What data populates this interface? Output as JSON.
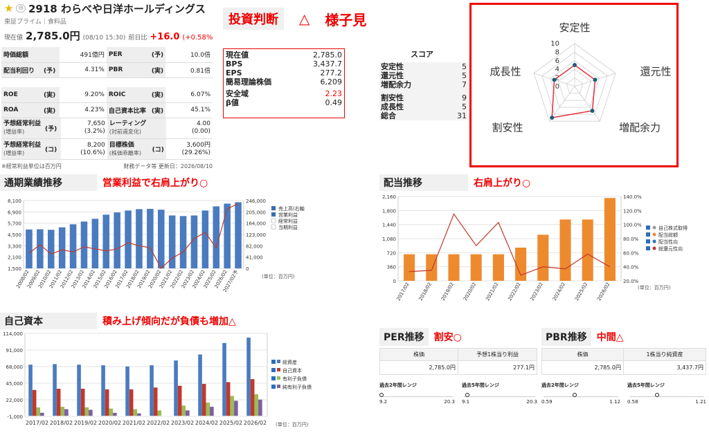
{
  "header": {
    "code_name": "2918 わらべや日洋ホールディングス",
    "market": "東証プライム",
    "sector": "食料品",
    "price_label": "現在値",
    "price": "2,785.0円",
    "time": "(08/10 15:30)",
    "prev_label": "前日比",
    "change": "+16.0",
    "change_pct": "(+0.58%"
  },
  "fin_rows": [
    {
      "l1": "時価総額",
      "l2": "",
      "v1": "491億円",
      "l3": "PER",
      "l4": "(予)",
      "v2": "10.0倍"
    },
    {
      "l1": "配当利回り",
      "l2": "(予)",
      "v1": "4.31%",
      "l3": "PBR",
      "l4": "(実)",
      "v2": "0.81倍"
    },
    {
      "l1": "",
      "l2": "",
      "v1": "",
      "l3": "",
      "l4": "",
      "v2": ""
    },
    {
      "l1": "ROE",
      "l2": "(実)",
      "v1": "9.20%",
      "l3": "ROIC",
      "l4": "(実)",
      "v2": "6.07%"
    },
    {
      "l1": "ROA",
      "l2": "(実)",
      "v1": "4.23%",
      "l3": "自己資本比率",
      "l4": "(実)",
      "v2": "45.1%"
    }
  ],
  "fin_rows2": [
    {
      "l1": "予想経常利益",
      "s1": "(増益率)",
      "l2": "(予)",
      "v1": "7,650",
      "v1b": "(3.2%)",
      "l3": "レーティング",
      "s3": "(対前週変化)",
      "v2": "4.00",
      "v2b": "(0.00)"
    },
    {
      "l1": "予想経常利益",
      "s1": "(増益率)",
      "l2": "(コ)",
      "v1": "8,200",
      "v1b": "(10.6%)",
      "l3": "目標株価",
      "s3": "(株価乖離率)",
      "l4": "(コ)",
      "v2": "3,600円",
      "v2b": "(29.26%)"
    }
  ],
  "footnote": "※経常利益単位は百万円",
  "data_source": "財務データ等 更新日：2026/08/10",
  "judgement": {
    "label": "投資判断",
    "mark": "△",
    "verdict": "様子見"
  },
  "valuation": [
    {
      "k": "現在値",
      "v": "2,785.0"
    },
    {
      "k": "BPS",
      "v": "3,437.7"
    },
    {
      "k": "EPS",
      "v": "277.2"
    },
    {
      "k": "簡易理論株価",
      "v": "6,209"
    },
    {
      "k": "安全域",
      "v": "2.23"
    },
    {
      "k": "β値",
      "v": "0.49"
    }
  ],
  "score": {
    "title": "スコア",
    "rows": [
      {
        "k": "安定性",
        "v": "5"
      },
      {
        "k": "還元性",
        "v": "5"
      },
      {
        "k": "増配余力",
        "v": "7"
      },
      {
        "k": "割安性",
        "v": "9"
      },
      {
        "k": "成長性",
        "v": "5"
      },
      {
        "k": "総合",
        "v": "31"
      }
    ]
  },
  "radar": {
    "labels": [
      "安定性",
      "還元性",
      "増配余力",
      "割安性",
      "成長性"
    ],
    "values": [
      5,
      5,
      7,
      9,
      5
    ],
    "max": 10,
    "ticks": [
      "10",
      "8",
      "6",
      "4",
      "2",
      "0"
    ]
  },
  "sec1": {
    "title": "通期業績推移",
    "note": "営業利益で右肩上がり○",
    "unit": "(単位：百万円)",
    "legend": [
      "売上高(右軸)",
      "営業利益",
      "経常利益",
      "当期利益"
    ]
  },
  "sec2": {
    "title": "配当推移",
    "note": "右肩上がり○",
    "unit": "(単位：百万円)",
    "legend": [
      "自己株式取得",
      "配当総額",
      "配当性向",
      "総還元性向"
    ]
  },
  "sec3": {
    "title": "自己資本",
    "note": "積み上げ傾向だが負債も増加△",
    "unit": "(単位：百万円)",
    "legend": [
      "総資産",
      "自己資本",
      "有利子負債",
      "純有利子負債"
    ]
  },
  "per": {
    "title": "PER推移",
    "note": "割安○",
    "h1": "株価",
    "h2": "予想1株当り利益",
    "v1": "2,785.0円",
    "v2": "277.1円",
    "r2": "過去2年間レンジ",
    "r5": "過去5年間レンジ",
    "r2min": "9.2",
    "r2max": "20.3",
    "r5min": "9.1",
    "r5max": "20.3",
    "r2pos": 0.0,
    "r5pos": 0.05
  },
  "pbr": {
    "title": "PBR推移",
    "note": "中間△",
    "h1": "株価",
    "h2": "1株当り純資産",
    "v1": "2,785.0円",
    "v2": "3,437.7円",
    "r2": "過去2年間レンジ",
    "r5": "過去5年間レンジ",
    "r2min": "0.59",
    "r2max": "1.12",
    "r5min": "0.58",
    "r5max": "1.21",
    "r2pos": 0.42,
    "r5pos": 0.37
  },
  "chart_data": [
    {
      "type": "bar",
      "title": "通期業績推移",
      "categories": [
        "2008/02",
        "2009/02",
        "2010/02",
        "2011/02",
        "2012/02",
        "2013/02",
        "2014/02",
        "2015/02",
        "2016/02",
        "2017/02",
        "2018/02",
        "2019/02",
        "2020/02",
        "2021/02",
        "2022/02",
        "2023/02",
        "2024/02",
        "2025/02",
        "2026/02",
        "2027/02予"
      ],
      "y_left_ticks": [
        "8,100",
        "6,900",
        "5,700",
        "4,500",
        "3,300",
        "2,100",
        "1,500"
      ],
      "y_right_ticks": [
        "246,000",
        "205,000",
        "164,000",
        "123,000",
        "82,000",
        "41,000",
        "0"
      ],
      "ylim_left": [
        1500,
        8100
      ],
      "ylim_right": [
        0,
        246000
      ],
      "series": [
        {
          "name": "売上高(右軸)",
          "type": "bar",
          "axis": "right",
          "color": "#4a7bbf",
          "values": [
            141000,
            142000,
            140000,
            149000,
            160000,
            170000,
            180000,
            195000,
            203000,
            210000,
            215000,
            216000,
            213000,
            192000,
            190000,
            192000,
            210000,
            225000,
            235000,
            240000
          ]
        },
        {
          "name": "営業利益",
          "type": "line",
          "axis": "left",
          "color": "#c0392b",
          "values": [
            3000,
            3800,
            2900,
            3300,
            3100,
            3600,
            3400,
            3200,
            3400,
            4000,
            3700,
            3500,
            1500,
            2500,
            3100,
            4400,
            5000,
            3500,
            7300,
            7800
          ]
        }
      ]
    },
    {
      "type": "bar",
      "title": "配当推移",
      "categories": [
        "2017/02",
        "2018/02",
        "2019/02",
        "2020/02",
        "2021/02",
        "2022/02",
        "2023/02",
        "2024/02",
        "2025/02",
        "2026/02"
      ],
      "y_left_ticks": [
        "2,160",
        "1,800",
        "1,440",
        "1,080",
        "720",
        "360",
        "0"
      ],
      "y_right_ticks": [
        "140.0%",
        "120.0%",
        "100.0%",
        "80.0%",
        "60.0%",
        "40.0%",
        "20.0%"
      ],
      "ylim_left": [
        0,
        2160
      ],
      "ylim_right": [
        20,
        140
      ],
      "series": [
        {
          "name": "配当総額",
          "type": "bar",
          "axis": "left",
          "color": "#ee8a2e",
          "values": [
            680,
            680,
            680,
            680,
            680,
            850,
            1180,
            1570,
            1570,
            2120
          ]
        },
        {
          "name": "総還元性向",
          "type": "line",
          "axis": "right",
          "color": "#c0392b",
          "values": [
            33,
            35,
            115,
            70,
            103,
            28,
            40,
            37,
            58,
            40
          ]
        }
      ]
    },
    {
      "type": "bar",
      "title": "自己資本",
      "categories": [
        "2017/02",
        "2018/02",
        "2019/02",
        "2020/02",
        "2021/02",
        "2022/02",
        "2023/02",
        "2024/02",
        "2025/02",
        "2026/02"
      ],
      "y_ticks": [
        "114,000",
        "91,000",
        "68,000",
        "45,000",
        "22,000",
        "-1,000"
      ],
      "ylim": [
        -1000,
        137000
      ],
      "series": [
        {
          "name": "総資産",
          "color": "#4a7bbf",
          "values": [
            85000,
            86000,
            85000,
            84000,
            82000,
            84000,
            92000,
            102000,
            121000,
            130000
          ]
        },
        {
          "name": "自己資本",
          "color": "#c0392b",
          "values": [
            43000,
            45000,
            45000,
            44000,
            44000,
            47000,
            50000,
            53000,
            56000,
            61000
          ]
        },
        {
          "name": "有利子負債",
          "color": "#9bbb59",
          "values": [
            14000,
            15000,
            14000,
            12000,
            11000,
            9000,
            17000,
            22000,
            33000,
            36000
          ]
        },
        {
          "name": "純有利子負債",
          "color": "#7d5fa0",
          "values": [
            5000,
            11000,
            10000,
            5000,
            4000,
            0,
            9000,
            15000,
            25000,
            27000
          ]
        }
      ]
    }
  ]
}
